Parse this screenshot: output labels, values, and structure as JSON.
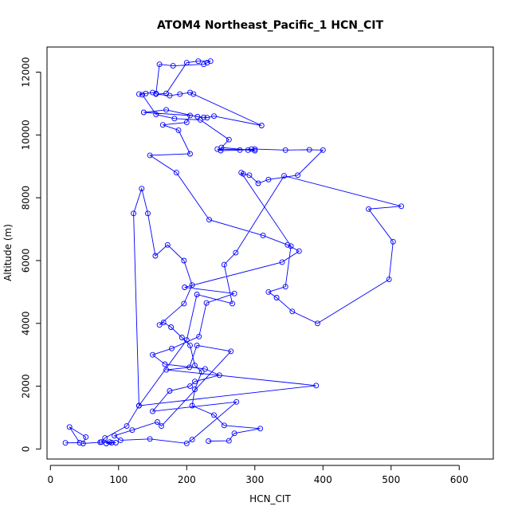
{
  "chart_data": {
    "type": "line",
    "title": "ATOM4 Northeast_Pacific_1 HCN_CIT",
    "xlabel": "HCN_CIT",
    "ylabel": "Altitude (m)",
    "xlim": [
      -5,
      650
    ],
    "ylim": [
      -320,
      12800
    ],
    "xticks": [
      0,
      100,
      200,
      300,
      400,
      500,
      600
    ],
    "yticks": [
      0,
      2000,
      4000,
      6000,
      8000,
      10000,
      12000
    ],
    "grid": false,
    "marker": "open-circle",
    "line_color": "#0000ff",
    "series": [
      {
        "x": [
          22,
          43,
          28,
          52,
          48,
          73,
          90,
          82,
          96,
          87,
          75,
          80,
          112,
          130,
          390,
          170,
          204,
          215,
          265,
          163,
          157,
          120,
          94,
          103,
          146,
          200,
          208,
          273,
          150,
          175,
          205,
          212,
          248,
          227,
          168,
          150,
          178,
          218,
          229,
          270,
          197,
          340,
          365,
          348,
          312,
          233,
          185,
          146,
          205,
          188,
          165,
          200,
          205,
          137,
          170,
          216,
          225,
          230,
          240,
          310,
          210,
          205,
          190,
          175,
          155,
          170,
          200,
          217,
          235,
          230,
          225,
          180,
          160,
          155,
          150,
          140,
          130,
          135,
          155,
          182,
          220,
          262,
          251,
          300,
          295,
          278,
          250,
          245,
          290,
          300,
          345,
          380,
          400,
          363,
          320,
          305,
          292,
          283,
          280,
          353,
          345,
          320,
          332,
          355,
          392,
          497,
          503,
          467,
          515,
          343,
          272,
          255,
          267,
          215,
          200,
          130,
          122,
          134,
          143,
          154,
          172,
          196,
          208,
          196,
          160,
          166,
          177,
          193,
          205,
          212,
          222,
          212,
          208,
          240,
          255,
          308,
          270,
          262,
          232
        ],
        "y": [
          195,
          200,
          700,
          380,
          175,
          215,
          200,
          175,
          200,
          220,
          220,
          350,
          730,
          1380,
          2020,
          2520,
          2600,
          3300,
          3110,
          730,
          860,
          600,
          420,
          280,
          320,
          180,
          300,
          1500,
          1200,
          1850,
          2000,
          2150,
          2350,
          2550,
          2700,
          3000,
          3200,
          3580,
          4650,
          4950,
          5150,
          5950,
          6300,
          6500,
          6800,
          7300,
          8800,
          9350,
          9400,
          10150,
          10320,
          10400,
          10620,
          10720,
          10800,
          10580,
          10560,
          10550,
          10600,
          10300,
          11300,
          11350,
          11300,
          11250,
          11300,
          11320,
          12300,
          12350,
          12350,
          12300,
          12250,
          12200,
          12250,
          11320,
          11350,
          11320,
          11300,
          11280,
          10650,
          10520,
          10480,
          9850,
          9600,
          9500,
          9550,
          9520,
          9500,
          9550,
          9520,
          9550,
          9520,
          9530,
          9520,
          8720,
          8580,
          8460,
          8720,
          8760,
          8800,
          6460,
          5170,
          5000,
          4820,
          4380,
          4000,
          5400,
          6600,
          7640,
          7730,
          8700,
          6250,
          5870,
          4630,
          4920,
          3470,
          1380,
          7500,
          8290,
          7500,
          6150,
          6500,
          6000,
          5220,
          4630,
          3950,
          4030,
          3880,
          3550,
          3300,
          2660,
          2450,
          1900,
          1380,
          1080,
          750,
          650,
          500,
          260,
          250
        ]
      }
    ]
  }
}
